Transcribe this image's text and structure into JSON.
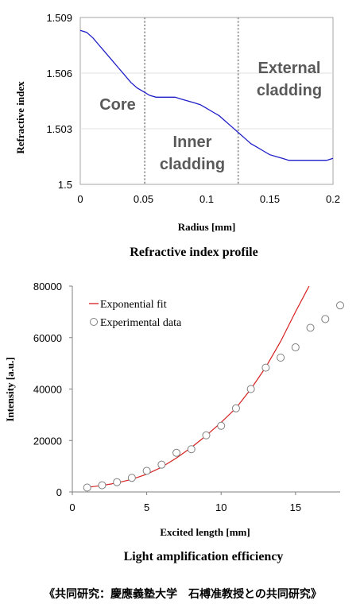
{
  "chart_data": [
    {
      "type": "line",
      "title": "Refractive index profile",
      "xlabel": "Radius [mm]",
      "ylabel": "Refractive index",
      "xlim": [
        0,
        0.2
      ],
      "ylim": [
        1.5,
        1.509
      ],
      "x_ticks": [
        "0",
        "0.05",
        "0.1",
        "0.15",
        "0.2"
      ],
      "y_ticks": [
        "1.5",
        "1.503",
        "1.506",
        "1.509"
      ],
      "series": [
        {
          "color": "#1f1fc8",
          "x": [
            0,
            0.005,
            0.01,
            0.015,
            0.02,
            0.025,
            0.03,
            0.035,
            0.04,
            0.045,
            0.05,
            0.055,
            0.06,
            0.065,
            0.07,
            0.075,
            0.08,
            0.085,
            0.09,
            0.095,
            0.1,
            0.105,
            0.11,
            0.115,
            0.12,
            0.125,
            0.13,
            0.135,
            0.14,
            0.145,
            0.15,
            0.155,
            0.16,
            0.165,
            0.17,
            0.175,
            0.18,
            0.185,
            0.19,
            0.195,
            0.2
          ],
          "y": [
            1.5083,
            1.5082,
            1.5079,
            1.5075,
            1.5071,
            1.5067,
            1.5063,
            1.5059,
            1.5055,
            1.5052,
            1.505,
            1.5048,
            1.5047,
            1.5047,
            1.5047,
            1.5047,
            1.5046,
            1.5045,
            1.5044,
            1.5043,
            1.5041,
            1.5039,
            1.5037,
            1.5034,
            1.5031,
            1.5028,
            1.5025,
            1.5022,
            1.502,
            1.5018,
            1.5016,
            1.5015,
            1.5014,
            1.5013,
            1.5013,
            1.5013,
            1.5013,
            1.5013,
            1.5013,
            1.5013,
            1.5014
          ]
        }
      ],
      "vlines": [
        0.051,
        0.125
      ],
      "region_labels": {
        "core": "Core",
        "inner_1": "Inner",
        "inner_2": "cladding",
        "external_1": "External",
        "external_2": "cladding"
      }
    },
    {
      "type": "scatter",
      "title": "Light amplification efficiency",
      "xlabel": "Excited length [mm]",
      "ylabel": "Intensity [a.u.]",
      "xlim": [
        0,
        18
      ],
      "ylim": [
        0,
        80000
      ],
      "x_ticks": [
        "0",
        "5",
        "10",
        "15"
      ],
      "y_ticks": [
        "0",
        "20000",
        "40000",
        "60000",
        "80000"
      ],
      "series": [
        {
          "name": "Exponential fit",
          "kind": "line",
          "color": "#d62020",
          "x": [
            1,
            2,
            3,
            4,
            5,
            6,
            7,
            8,
            9,
            10,
            11,
            12,
            13,
            14,
            15,
            16
          ],
          "y": [
            1800,
            2500,
            3500,
            4900,
            6900,
            9600,
            13200,
            17300,
            21900,
            27000,
            32600,
            40000,
            48500,
            58500,
            70000,
            81000
          ]
        },
        {
          "name": "Experimental data",
          "kind": "markers",
          "color": "#808080",
          "x": [
            1,
            2,
            3,
            4,
            5,
            6,
            7,
            8,
            9,
            10,
            11,
            12,
            13,
            14,
            15,
            16,
            17,
            18
          ],
          "y": [
            1700,
            2600,
            3800,
            5500,
            8200,
            10600,
            15200,
            16600,
            22000,
            25700,
            32500,
            40000,
            48300,
            52200,
            56200,
            63800,
            67200,
            72500
          ]
        }
      ],
      "legend": "top-left"
    }
  ],
  "footer_text": "《共同研究：慶應義塾大学　石榑准教授との共同研究》"
}
